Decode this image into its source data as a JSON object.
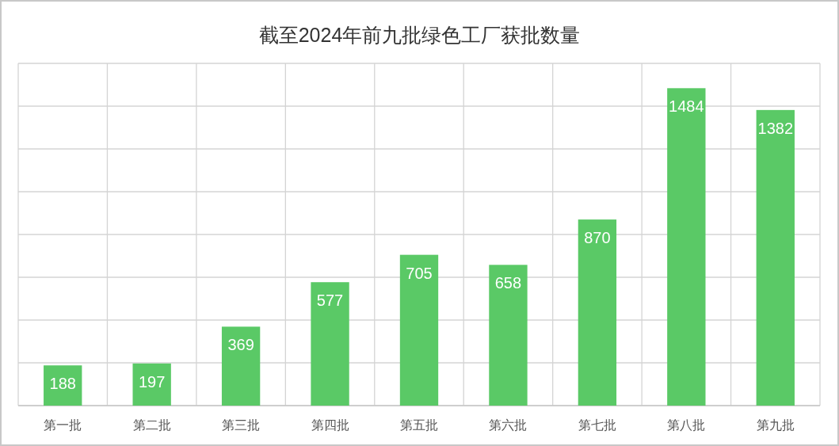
{
  "chart_data": {
    "type": "bar",
    "title": "截至2024年前九批绿色工厂获批数量",
    "categories": [
      "第一批",
      "第二批",
      "第三批",
      "第四批",
      "第五批",
      "第六批",
      "第七批",
      "第八批",
      "第九批"
    ],
    "values": [
      188,
      197,
      369,
      577,
      705,
      658,
      870,
      1484,
      1382
    ],
    "color": "#5ac966",
    "ylim": [
      0,
      1600
    ],
    "yticks": [
      {
        "value": 0,
        "label": null
      },
      {
        "value": 200,
        "label": null
      },
      {
        "value": 400,
        "label": null
      },
      {
        "value": 600,
        "label": null
      },
      {
        "value": 800,
        "label": null
      },
      {
        "value": 1000,
        "label": null
      },
      {
        "value": 1200,
        "label": null
      },
      {
        "value": 1400,
        "label": null
      },
      {
        "value": 1600,
        "label": null
      }
    ],
    "tick_labels": "x",
    "grid": true,
    "data_labels": true
  }
}
